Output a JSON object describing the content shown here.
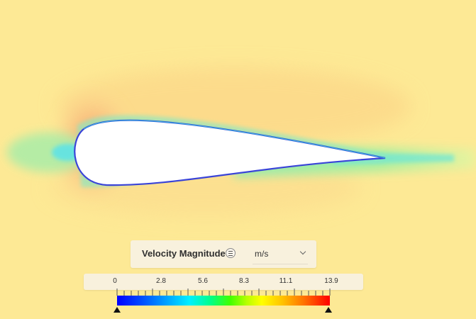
{
  "legend": {
    "title": "Velocity Magnitude",
    "unit": "m/s",
    "min": 0,
    "max": 13.9,
    "tick_labels": [
      "0",
      "2.8",
      "5.6",
      "8.3",
      "11.1",
      "13.9"
    ]
  },
  "icons": {
    "legend_menu": "menu-lines-icon",
    "unit_dropdown": "chevron-down-icon",
    "range_handles": "triangle-up-icon"
  },
  "colors": {
    "freestream": "#fde995",
    "stagnation": "#f49a6a",
    "wake": "#7fe8a8",
    "scale_low": "#0000ff",
    "scale_high": "#ff0000"
  }
}
